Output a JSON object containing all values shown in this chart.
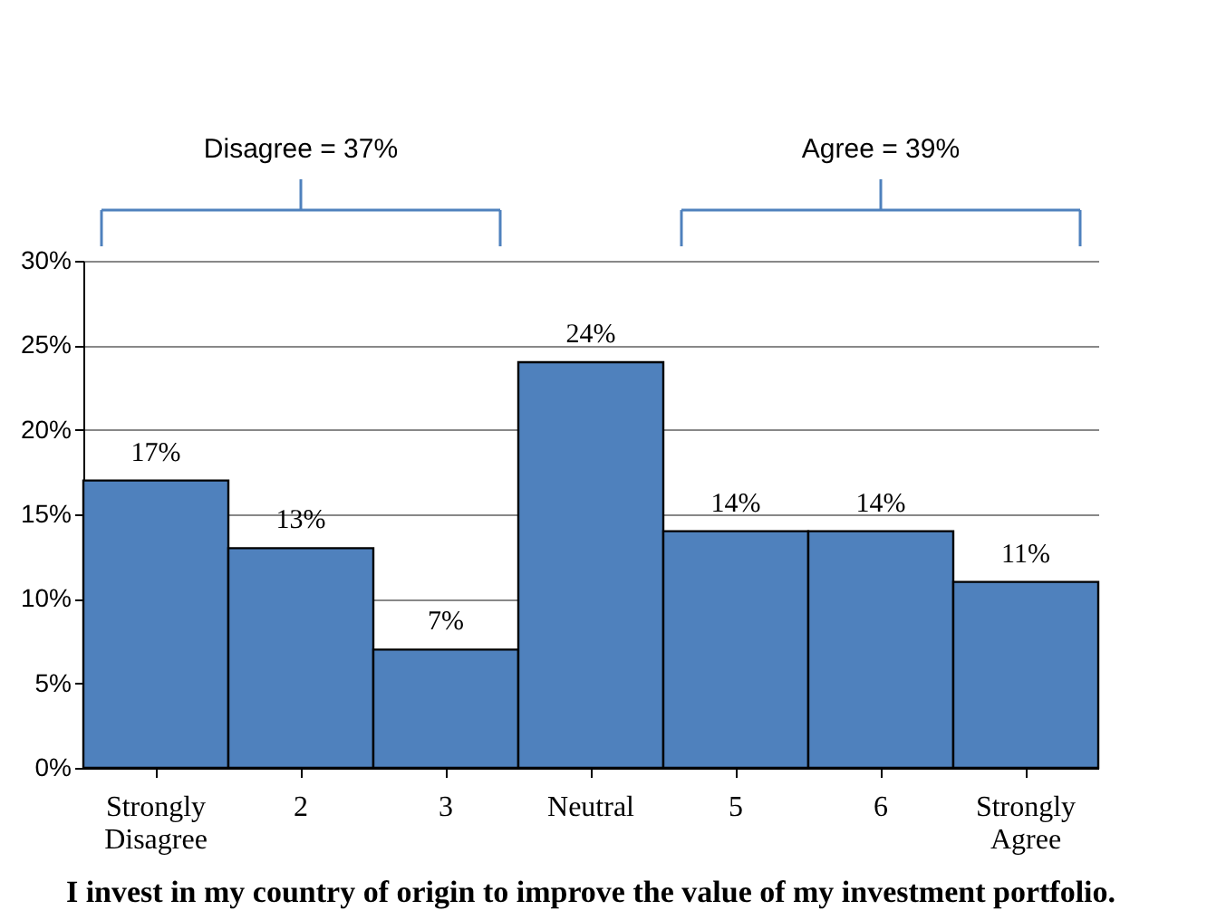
{
  "chart_data": {
    "type": "bar",
    "title": "I invest in my country of origin to improve the value of my investment portfolio.",
    "categories": [
      "Strongly Disagree",
      "2",
      "3",
      "Neutral",
      "5",
      "6",
      "Strongly Agree"
    ],
    "values": [
      17,
      13,
      7,
      24,
      14,
      14,
      11
    ],
    "value_labels": [
      "17%",
      "13%",
      "7%",
      "24%",
      "14%",
      "14%",
      "11%"
    ],
    "color": "#4f81bd",
    "ylim": [
      0,
      30
    ],
    "yticks": [
      {
        "value": 0,
        "label": "0%"
      },
      {
        "value": 5,
        "label": "5%"
      },
      {
        "value": 10,
        "label": "10%"
      },
      {
        "value": 15,
        "label": "15%"
      },
      {
        "value": 20,
        "label": "20%"
      },
      {
        "value": 25,
        "label": "25%"
      },
      {
        "value": 30,
        "label": "30%"
      }
    ],
    "grid": "y",
    "annotations": [
      "Disagree = 37%",
      "Agree = 39%"
    ]
  }
}
